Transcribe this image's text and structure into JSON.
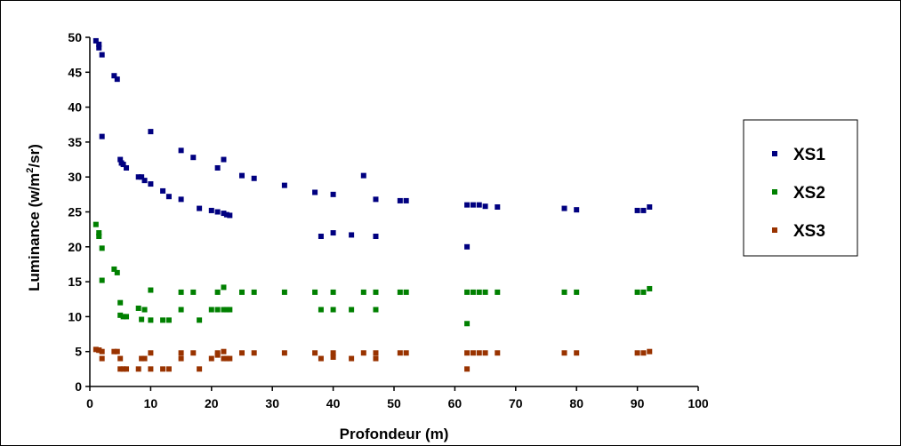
{
  "chart_data": {
    "type": "scatter",
    "xlabel": "Profondeur (m)",
    "ylabel_parts": {
      "before": "Luminance (w/m",
      "sup": "2",
      "after": "/sr)"
    },
    "xlim": [
      0,
      100
    ],
    "ylim": [
      0,
      50
    ],
    "x_ticks": [
      0,
      10,
      20,
      30,
      40,
      50,
      60,
      70,
      80,
      90,
      100
    ],
    "y_ticks": [
      0,
      5,
      10,
      15,
      20,
      25,
      30,
      35,
      40,
      45,
      50
    ],
    "grid": false,
    "legend_position": "right",
    "series": [
      {
        "name": "XS1",
        "color": "#000080",
        "points": [
          [
            1,
            49.5
          ],
          [
            1.5,
            49
          ],
          [
            1.5,
            48.5
          ],
          [
            2,
            47.5
          ],
          [
            2,
            35.8
          ],
          [
            4,
            44.5
          ],
          [
            4.5,
            44
          ],
          [
            5,
            32.5
          ],
          [
            5.2,
            32
          ],
          [
            5.5,
            31.8
          ],
          [
            6,
            31.3
          ],
          [
            8,
            30
          ],
          [
            8.5,
            30
          ],
          [
            9,
            29.5
          ],
          [
            10,
            29
          ],
          [
            10,
            36.5
          ],
          [
            12,
            28
          ],
          [
            13,
            27.2
          ],
          [
            15,
            26.8
          ],
          [
            15,
            33.8
          ],
          [
            17,
            32.8
          ],
          [
            18,
            25.5
          ],
          [
            20,
            25.2
          ],
          [
            21,
            25
          ],
          [
            21,
            31.3
          ],
          [
            22,
            24.8
          ],
          [
            22,
            32.5
          ],
          [
            22.5,
            24.6
          ],
          [
            23,
            24.5
          ],
          [
            25,
            30.2
          ],
          [
            27,
            29.8
          ],
          [
            32,
            28.8
          ],
          [
            37,
            27.8
          ],
          [
            38,
            21.5
          ],
          [
            40,
            27.5
          ],
          [
            40,
            22
          ],
          [
            43,
            21.7
          ],
          [
            45,
            30.2
          ],
          [
            47,
            26.8
          ],
          [
            47,
            21.5
          ],
          [
            51,
            26.6
          ],
          [
            52,
            26.6
          ],
          [
            62,
            26
          ],
          [
            62,
            20
          ],
          [
            63,
            26
          ],
          [
            64,
            26
          ],
          [
            65,
            25.8
          ],
          [
            67,
            25.7
          ],
          [
            78,
            25.5
          ],
          [
            80,
            25.3
          ],
          [
            90,
            25.2
          ],
          [
            91,
            25.2
          ],
          [
            92,
            25.7
          ]
        ]
      },
      {
        "name": "XS2",
        "color": "#008000",
        "points": [
          [
            1,
            23.2
          ],
          [
            1.5,
            22
          ],
          [
            1.5,
            21.5
          ],
          [
            2,
            19.8
          ],
          [
            2,
            15.2
          ],
          [
            4,
            16.8
          ],
          [
            4.5,
            16.3
          ],
          [
            5,
            12
          ],
          [
            5,
            10.2
          ],
          [
            5.5,
            10
          ],
          [
            6,
            10
          ],
          [
            8,
            11.2
          ],
          [
            8.5,
            9.6
          ],
          [
            9,
            11
          ],
          [
            10,
            13.8
          ],
          [
            10,
            9.5
          ],
          [
            12,
            9.5
          ],
          [
            13,
            9.5
          ],
          [
            15,
            13.5
          ],
          [
            15,
            11
          ],
          [
            17,
            13.5
          ],
          [
            18,
            9.5
          ],
          [
            20,
            11
          ],
          [
            21,
            11
          ],
          [
            21,
            13.5
          ],
          [
            22,
            11
          ],
          [
            22,
            14.2
          ],
          [
            22.5,
            11
          ],
          [
            23,
            11
          ],
          [
            25,
            13.5
          ],
          [
            27,
            13.5
          ],
          [
            32,
            13.5
          ],
          [
            37,
            13.5
          ],
          [
            38,
            11
          ],
          [
            40,
            13.5
          ],
          [
            40,
            11
          ],
          [
            43,
            11
          ],
          [
            45,
            13.5
          ],
          [
            47,
            13.5
          ],
          [
            47,
            11
          ],
          [
            51,
            13.5
          ],
          [
            52,
            13.5
          ],
          [
            62,
            13.5
          ],
          [
            62,
            9
          ],
          [
            63,
            13.5
          ],
          [
            64,
            13.5
          ],
          [
            65,
            13.5
          ],
          [
            67,
            13.5
          ],
          [
            78,
            13.5
          ],
          [
            80,
            13.5
          ],
          [
            90,
            13.5
          ],
          [
            91,
            13.5
          ],
          [
            92,
            14
          ]
        ]
      },
      {
        "name": "XS3",
        "color": "#993300",
        "points": [
          [
            1,
            5.3
          ],
          [
            1.5,
            5.2
          ],
          [
            1.5,
            5.2
          ],
          [
            2,
            5
          ],
          [
            2,
            4
          ],
          [
            4,
            5
          ],
          [
            4.5,
            5
          ],
          [
            5,
            4
          ],
          [
            5,
            2.5
          ],
          [
            5.5,
            2.5
          ],
          [
            6,
            2.5
          ],
          [
            8,
            2.5
          ],
          [
            8.5,
            4
          ],
          [
            9,
            4
          ],
          [
            10,
            4.8
          ],
          [
            10,
            2.5
          ],
          [
            12,
            2.5
          ],
          [
            13,
            2.5
          ],
          [
            15,
            4.8
          ],
          [
            15,
            4
          ],
          [
            17,
            4.8
          ],
          [
            18,
            2.5
          ],
          [
            20,
            4
          ],
          [
            21,
            4.5
          ],
          [
            21,
            4.8
          ],
          [
            22,
            4
          ],
          [
            22,
            5
          ],
          [
            22.5,
            4
          ],
          [
            23,
            4
          ],
          [
            25,
            4.8
          ],
          [
            27,
            4.8
          ],
          [
            32,
            4.8
          ],
          [
            37,
            4.8
          ],
          [
            38,
            4
          ],
          [
            40,
            4.8
          ],
          [
            40,
            4.2
          ],
          [
            43,
            4
          ],
          [
            45,
            4.8
          ],
          [
            47,
            4.8
          ],
          [
            47,
            4
          ],
          [
            51,
            4.8
          ],
          [
            52,
            4.8
          ],
          [
            62,
            4.8
          ],
          [
            62,
            2.5
          ],
          [
            63,
            4.8
          ],
          [
            64,
            4.8
          ],
          [
            65,
            4.8
          ],
          [
            67,
            4.8
          ],
          [
            78,
            4.8
          ],
          [
            80,
            4.8
          ],
          [
            90,
            4.8
          ],
          [
            91,
            4.8
          ],
          [
            92,
            5
          ]
        ]
      }
    ]
  }
}
